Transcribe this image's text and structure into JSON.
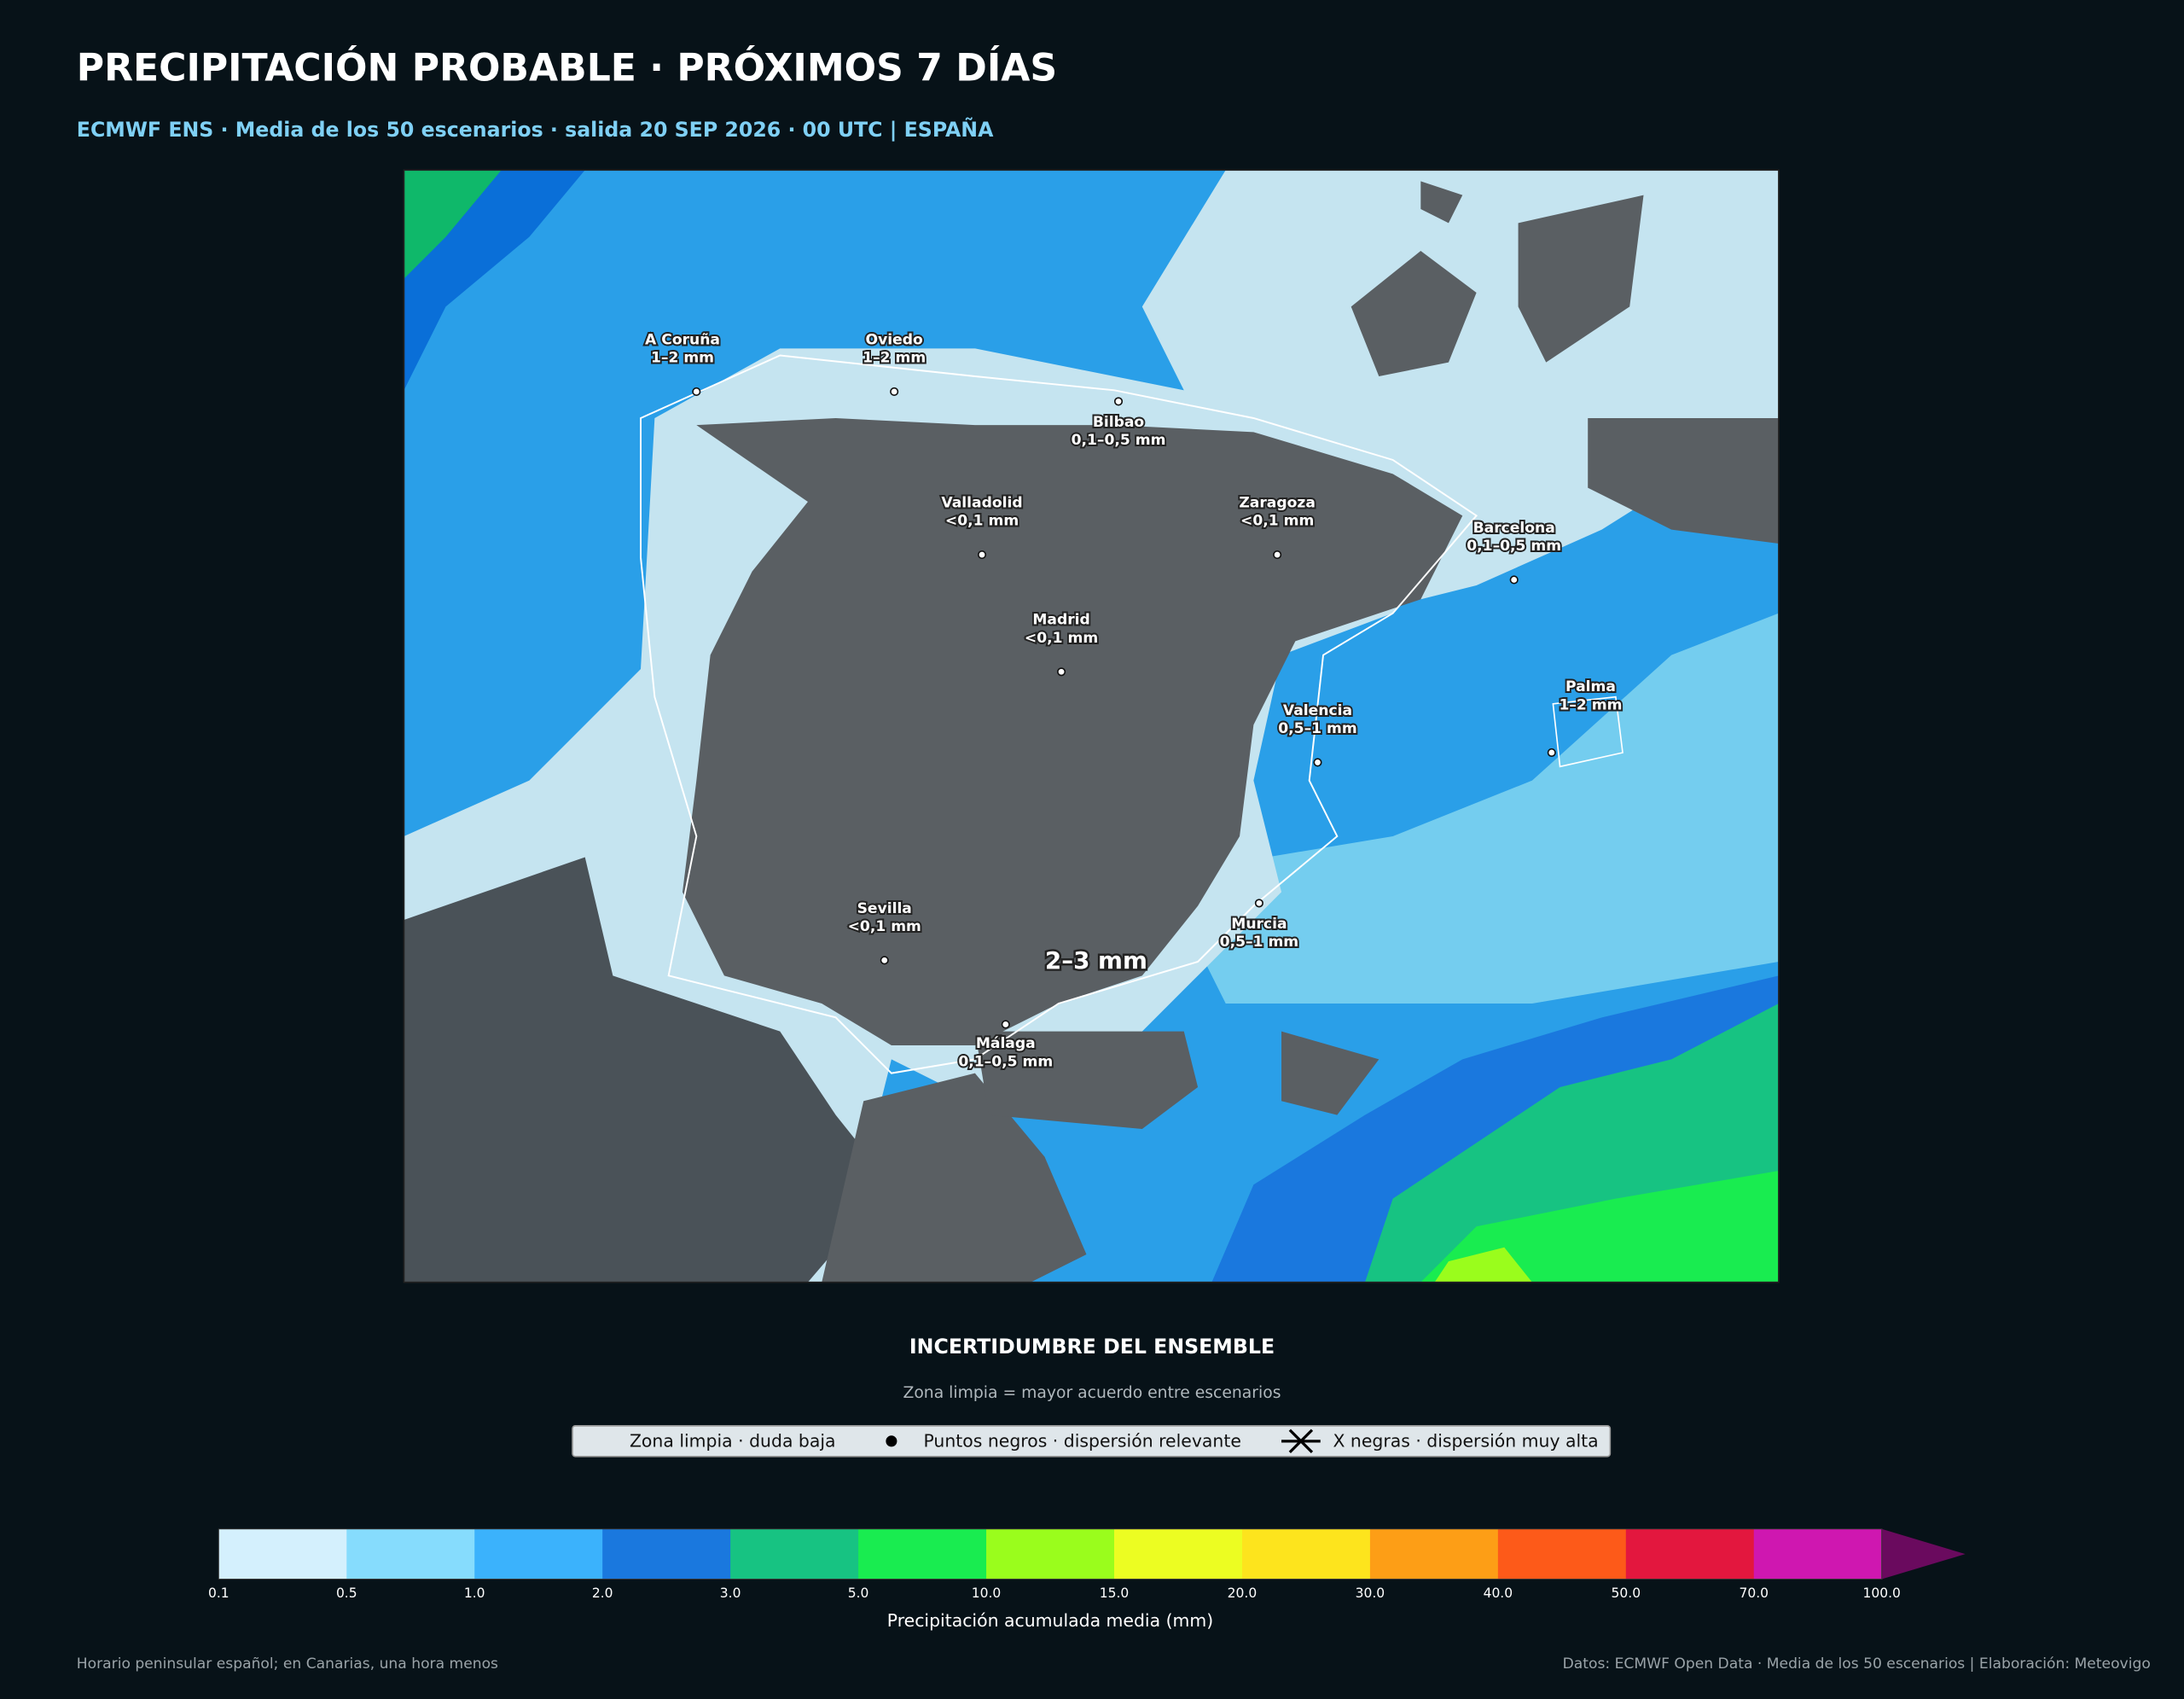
{
  "header": {
    "title": "PRECIPITACIÓN PROBABLE · PRÓXIMOS 7 DÍAS",
    "subtitle": "ECMWF ENS · Media de los 50 escenarios · salida 20 SEP 2026 · 00 UTC | ESPAÑA"
  },
  "map": {
    "cities": [
      {
        "name": "A Coruña",
        "value": "1–2 mm"
      },
      {
        "name": "Oviedo",
        "value": "1–2 mm"
      },
      {
        "name": "Bilbao",
        "value": "0,1–0,5 mm"
      },
      {
        "name": "Valladolid",
        "value": "<0,1 mm"
      },
      {
        "name": "Zaragoza",
        "value": "<0,1 mm"
      },
      {
        "name": "Barcelona",
        "value": "0,1–0,5 mm"
      },
      {
        "name": "Madrid",
        "value": "<0,1 mm"
      },
      {
        "name": "Valencia",
        "value": "0,5–1 mm"
      },
      {
        "name": "Palma",
        "value": "1–2 mm"
      },
      {
        "name": "Sevilla",
        "value": "<0,1 mm"
      },
      {
        "name": "Murcia",
        "value": "0,5–1 mm"
      },
      {
        "name": "Málaga",
        "value": "0,1–0,5 mm"
      }
    ],
    "highlight": "2–3 mm"
  },
  "uncertainty": {
    "title": "INCERTIDUMBRE DEL ENSEMBLE",
    "subtitle": "Zona limpia = mayor acuerdo entre escenarios",
    "items": [
      "Zona limpia · duda baja",
      "Puntos negros · dispersión relevante",
      "X negras · dispersión muy alta"
    ]
  },
  "colorbar": {
    "label": "Precipitación acumulada media (mm)",
    "ticks": [
      "0.1",
      "0.5",
      "1.0",
      "2.0",
      "3.0",
      "5.0",
      "10.0",
      "15.0",
      "20.0",
      "30.0",
      "40.0",
      "50.0",
      "70.0",
      "100.0"
    ],
    "colors": [
      "#d4f0fd",
      "#86dcfd",
      "#3bb2fc",
      "#1a78de",
      "#17c382",
      "#19ec50",
      "#9afd1c",
      "#ecfd22",
      "#fde41d",
      "#fd9e16",
      "#fd5a19",
      "#e3173e",
      "#cf17b0"
    ],
    "extend_color": "#6a0a5e"
  },
  "footer": {
    "left": "Horario peninsular español; en Canarias, una hora menos",
    "right": "Datos: ECMWF Open Data · Media de los 50 escenarios | Elaboración: Meteovigo"
  }
}
